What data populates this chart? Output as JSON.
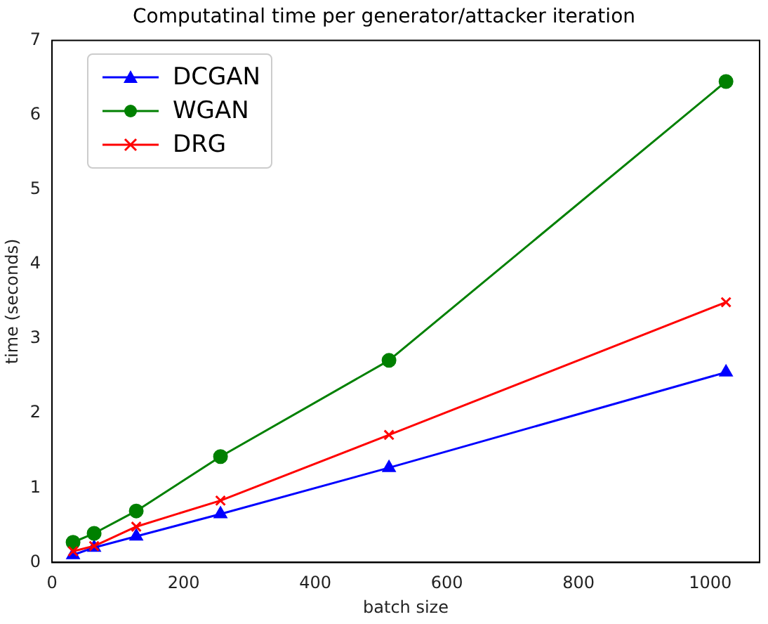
{
  "chart_data": {
    "type": "line",
    "title": "Computatinal time per generator/attacker iteration",
    "xlabel": "batch size",
    "ylabel": "time (seconds)",
    "x": [
      32,
      64,
      128,
      256,
      512,
      1024
    ],
    "series": [
      {
        "name": "DCGAN",
        "color": "#0000ff",
        "marker": "triangle",
        "values": [
          0.1,
          0.2,
          0.35,
          0.65,
          1.27,
          2.55
        ]
      },
      {
        "name": "WGAN",
        "color": "#008000",
        "marker": "circle",
        "values": [
          0.27,
          0.39,
          0.69,
          1.42,
          2.71,
          6.45
        ]
      },
      {
        "name": "DRG",
        "color": "#ff0000",
        "marker": "cross",
        "values": [
          0.15,
          0.22,
          0.48,
          0.83,
          1.71,
          3.49
        ]
      }
    ],
    "xlim": [
      0,
      1075
    ],
    "xticks": [
      0,
      200,
      400,
      600,
      800,
      1000
    ],
    "ylim": [
      0,
      7
    ],
    "yticks": [
      0,
      1,
      2,
      3,
      4,
      5,
      6,
      7
    ],
    "grid": false,
    "legend": "top left",
    "line_style": "solid"
  }
}
